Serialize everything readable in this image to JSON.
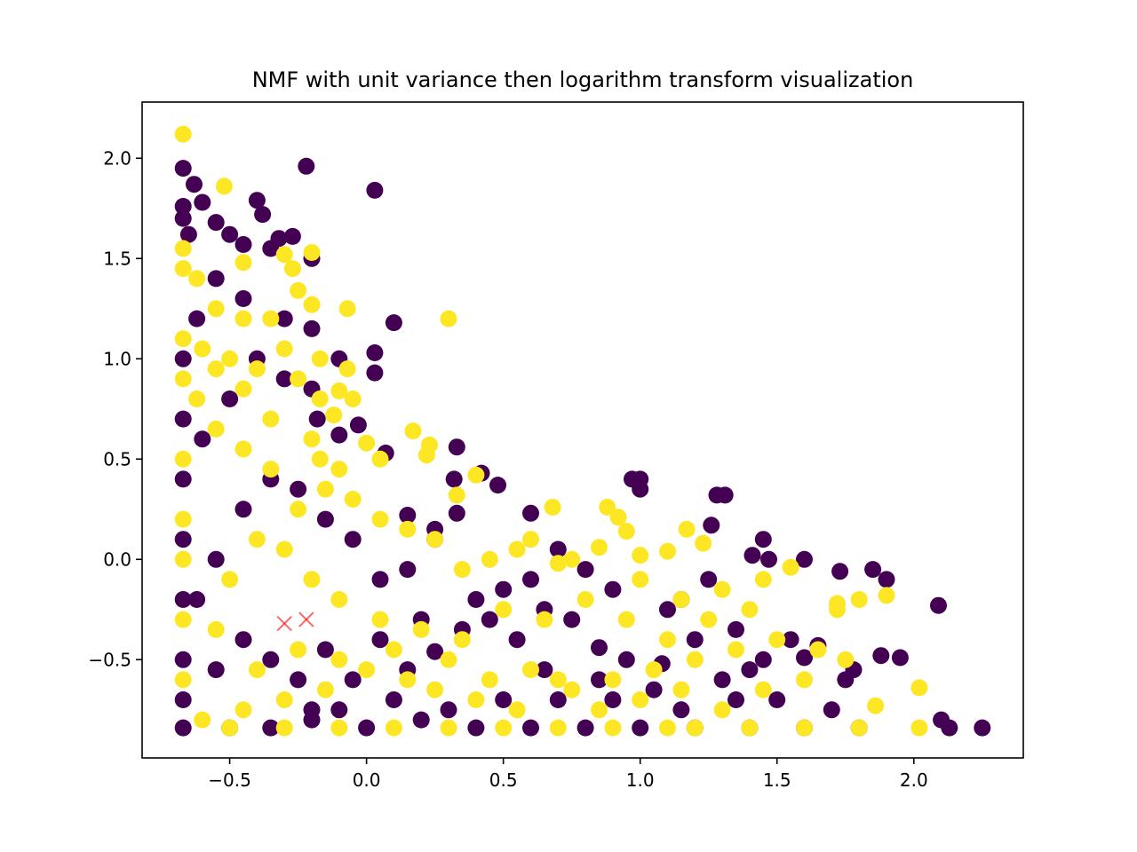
{
  "chart_data": {
    "type": "scatter",
    "title": "NMF with unit variance then logarithm transform visualization",
    "xlabel": "",
    "ylabel": "",
    "xlim": [
      -0.82,
      2.4
    ],
    "ylim": [
      -0.99,
      2.28
    ],
    "x_ticks": [
      -0.5,
      0.0,
      0.5,
      1.0,
      1.5,
      2.0
    ],
    "x_tick_labels": [
      "−0.5",
      "0.0",
      "0.5",
      "1.0",
      "1.5",
      "2.0"
    ],
    "y_ticks": [
      -0.5,
      0.0,
      0.5,
      1.0,
      1.5,
      2.0
    ],
    "y_tick_labels": [
      "−0.5",
      "0.0",
      "0.5",
      "1.0",
      "1.5",
      "2.0"
    ],
    "grid": false,
    "legend": "none",
    "colors": {
      "class_0": "#440154",
      "class_1": "#fde725",
      "centroid": "#ff0000"
    },
    "series": [
      {
        "values": [
          [
            -0.67,
            1.95
          ],
          [
            -0.67,
            1.76
          ],
          [
            -0.67,
            1.7
          ],
          [
            -0.65,
            1.62
          ],
          [
            -0.63,
            1.87
          ],
          [
            -0.6,
            1.78
          ],
          [
            -0.55,
            1.68
          ],
          [
            -0.5,
            1.62
          ],
          [
            -0.45,
            1.57
          ],
          [
            -0.4,
            1.79
          ],
          [
            -0.38,
            1.72
          ],
          [
            -0.35,
            1.55
          ],
          [
            -0.32,
            1.6
          ],
          [
            -0.27,
            1.61
          ],
          [
            -0.22,
            1.96
          ],
          [
            -0.2,
            1.5
          ],
          [
            0.03,
            1.84
          ],
          [
            -0.2,
            1.15
          ],
          [
            -0.1,
            1.0
          ],
          [
            0.03,
            1.03
          ],
          [
            0.03,
            0.93
          ],
          [
            0.1,
            1.18
          ],
          [
            -0.18,
            0.7
          ],
          [
            -0.1,
            0.62
          ],
          [
            -0.03,
            0.67
          ],
          [
            0.07,
            0.53
          ],
          [
            0.33,
            0.56
          ],
          [
            0.42,
            0.43
          ],
          [
            0.32,
            0.4
          ],
          [
            0.48,
            0.37
          ],
          [
            0.6,
            0.23
          ],
          [
            0.33,
            0.23
          ],
          [
            0.25,
            0.15
          ],
          [
            0.15,
            0.22
          ],
          [
            0.97,
            0.4
          ],
          [
            1.0,
            0.4
          ],
          [
            1.0,
            0.35
          ],
          [
            1.28,
            0.32
          ],
          [
            1.31,
            0.32
          ],
          [
            1.26,
            0.17
          ],
          [
            1.45,
            0.1
          ],
          [
            1.41,
            0.02
          ],
          [
            1.47,
            0.0
          ],
          [
            1.6,
            0.0
          ],
          [
            1.73,
            -0.06
          ],
          [
            1.85,
            -0.05
          ],
          [
            1.9,
            -0.1
          ],
          [
            2.09,
            -0.23
          ],
          [
            1.95,
            -0.49
          ],
          [
            1.88,
            -0.48
          ],
          [
            1.78,
            -0.55
          ],
          [
            1.65,
            -0.43
          ],
          [
            1.6,
            -0.49
          ],
          [
            1.45,
            -0.5
          ],
          [
            1.4,
            -0.55
          ],
          [
            1.3,
            -0.6
          ],
          [
            1.2,
            -0.4
          ],
          [
            1.08,
            -0.52
          ],
          [
            0.95,
            -0.5
          ],
          [
            0.85,
            -0.44
          ],
          [
            0.75,
            -0.3
          ],
          [
            0.65,
            -0.25
          ],
          [
            0.55,
            -0.4
          ],
          [
            0.45,
            -0.3
          ],
          [
            0.35,
            -0.35
          ],
          [
            0.25,
            -0.46
          ],
          [
            0.15,
            -0.55
          ],
          [
            0.05,
            -0.4
          ],
          [
            -0.05,
            -0.6
          ],
          [
            -0.15,
            -0.45
          ],
          [
            -0.25,
            -0.6
          ],
          [
            -0.35,
            -0.5
          ],
          [
            -0.45,
            -0.4
          ],
          [
            -0.55,
            -0.55
          ],
          [
            -0.62,
            -0.2
          ],
          [
            -0.55,
            0.0
          ],
          [
            -0.45,
            0.25
          ],
          [
            -0.35,
            0.4
          ],
          [
            -0.25,
            0.35
          ],
          [
            -0.15,
            0.2
          ],
          [
            -0.05,
            0.1
          ],
          [
            0.05,
            -0.1
          ],
          [
            0.15,
            -0.05
          ],
          [
            0.25,
            0.1
          ],
          [
            -0.6,
            0.6
          ],
          [
            -0.5,
            0.8
          ],
          [
            -0.4,
            1.0
          ],
          [
            -0.3,
            0.9
          ],
          [
            -0.2,
            0.85
          ],
          [
            -0.3,
            1.2
          ],
          [
            -0.45,
            1.3
          ],
          [
            -0.55,
            1.4
          ],
          [
            -0.62,
            1.2
          ],
          [
            -0.67,
            1.0
          ],
          [
            -0.67,
            0.7
          ],
          [
            -0.67,
            0.4
          ],
          [
            -0.67,
            0.1
          ],
          [
            -0.67,
            -0.2
          ],
          [
            -0.67,
            -0.5
          ],
          [
            -0.67,
            -0.7
          ],
          [
            -0.67,
            -0.84
          ],
          [
            -0.5,
            -0.84
          ],
          [
            -0.35,
            -0.84
          ],
          [
            -0.2,
            -0.8
          ],
          [
            0.0,
            -0.84
          ],
          [
            0.2,
            -0.8
          ],
          [
            0.4,
            -0.84
          ],
          [
            0.6,
            -0.84
          ],
          [
            0.8,
            -0.84
          ],
          [
            1.0,
            -0.84
          ],
          [
            1.2,
            -0.84
          ],
          [
            1.4,
            -0.84
          ],
          [
            1.6,
            -0.84
          ],
          [
            1.8,
            -0.84
          ],
          [
            2.1,
            -0.8
          ],
          [
            2.13,
            -0.84
          ],
          [
            2.25,
            -0.84
          ],
          [
            1.7,
            -0.75
          ],
          [
            1.5,
            -0.7
          ],
          [
            1.35,
            -0.7
          ],
          [
            1.15,
            -0.75
          ],
          [
            0.9,
            -0.7
          ],
          [
            0.7,
            -0.7
          ],
          [
            0.5,
            -0.7
          ],
          [
            0.3,
            -0.75
          ],
          [
            0.1,
            -0.7
          ],
          [
            -0.1,
            -0.75
          ],
          [
            -0.2,
            -0.75
          ],
          [
            0.7,
            0.05
          ],
          [
            0.8,
            -0.05
          ],
          [
            0.9,
            -0.15
          ],
          [
            1.1,
            -0.25
          ],
          [
            0.6,
            -0.1
          ],
          [
            0.4,
            -0.2
          ],
          [
            0.5,
            -0.15
          ],
          [
            0.2,
            -0.3
          ],
          [
            1.25,
            -0.1
          ],
          [
            1.15,
            -0.2
          ],
          [
            1.35,
            -0.35
          ],
          [
            1.55,
            -0.4
          ],
          [
            1.75,
            -0.6
          ],
          [
            0.85,
            -0.6
          ],
          [
            0.65,
            -0.55
          ],
          [
            1.05,
            -0.65
          ]
        ]
      },
      {
        "values": [
          [
            -0.67,
            2.12
          ],
          [
            -0.52,
            1.86
          ],
          [
            -0.67,
            1.55
          ],
          [
            -0.67,
            1.45
          ],
          [
            -0.62,
            1.4
          ],
          [
            -0.45,
            1.48
          ],
          [
            -0.3,
            1.52
          ],
          [
            -0.2,
            1.53
          ],
          [
            -0.27,
            1.45
          ],
          [
            -0.25,
            1.34
          ],
          [
            -0.2,
            1.27
          ],
          [
            -0.07,
            1.25
          ],
          [
            0.3,
            1.2
          ],
          [
            -0.17,
            1.0
          ],
          [
            -0.07,
            0.95
          ],
          [
            -0.1,
            0.84
          ],
          [
            -0.17,
            0.8
          ],
          [
            -0.12,
            0.72
          ],
          [
            -0.17,
            0.5
          ],
          [
            0.0,
            0.58
          ],
          [
            0.05,
            0.5
          ],
          [
            0.17,
            0.64
          ],
          [
            0.23,
            0.57
          ],
          [
            0.22,
            0.52
          ],
          [
            0.33,
            0.32
          ],
          [
            0.4,
            0.42
          ],
          [
            0.68,
            0.26
          ],
          [
            0.88,
            0.26
          ],
          [
            0.92,
            0.21
          ],
          [
            0.95,
            0.14
          ],
          [
            1.17,
            0.15
          ],
          [
            1.23,
            0.08
          ],
          [
            1.1,
            0.04
          ],
          [
            1.0,
            0.02
          ],
          [
            0.85,
            0.06
          ],
          [
            0.7,
            -0.02
          ],
          [
            0.55,
            0.05
          ],
          [
            0.45,
            0.0
          ],
          [
            0.35,
            -0.05
          ],
          [
            0.25,
            0.1
          ],
          [
            0.15,
            0.15
          ],
          [
            0.05,
            0.2
          ],
          [
            -0.05,
            0.3
          ],
          [
            -0.15,
            0.35
          ],
          [
            -0.25,
            0.25
          ],
          [
            -0.35,
            0.45
          ],
          [
            -0.45,
            0.55
          ],
          [
            -0.55,
            0.65
          ],
          [
            -0.62,
            0.8
          ],
          [
            -0.67,
            0.9
          ],
          [
            -0.67,
            1.1
          ],
          [
            -0.6,
            1.05
          ],
          [
            -0.5,
            1.0
          ],
          [
            -0.4,
            0.95
          ],
          [
            -0.3,
            1.05
          ],
          [
            -0.35,
            1.2
          ],
          [
            -0.45,
            1.2
          ],
          [
            -0.55,
            1.25
          ],
          [
            -0.67,
            0.5
          ],
          [
            -0.67,
            0.2
          ],
          [
            -0.67,
            0.0
          ],
          [
            -0.67,
            -0.3
          ],
          [
            -0.67,
            -0.6
          ],
          [
            -0.6,
            -0.8
          ],
          [
            -0.45,
            -0.75
          ],
          [
            -0.3,
            -0.7
          ],
          [
            -0.15,
            -0.65
          ],
          [
            0.0,
            -0.55
          ],
          [
            0.15,
            -0.6
          ],
          [
            0.3,
            -0.5
          ],
          [
            0.45,
            -0.6
          ],
          [
            0.6,
            -0.55
          ],
          [
            0.75,
            -0.65
          ],
          [
            0.9,
            -0.6
          ],
          [
            1.05,
            -0.55
          ],
          [
            1.2,
            -0.5
          ],
          [
            1.35,
            -0.45
          ],
          [
            1.5,
            -0.4
          ],
          [
            1.65,
            -0.45
          ],
          [
            1.72,
            -0.25
          ],
          [
            1.72,
            -0.22
          ],
          [
            1.8,
            -0.2
          ],
          [
            1.9,
            -0.18
          ],
          [
            2.02,
            -0.64
          ],
          [
            2.02,
            -0.84
          ],
          [
            1.86,
            -0.73
          ],
          [
            1.8,
            -0.84
          ],
          [
            1.6,
            -0.84
          ],
          [
            1.4,
            -0.84
          ],
          [
            1.2,
            -0.84
          ],
          [
            1.1,
            -0.84
          ],
          [
            0.9,
            -0.84
          ],
          [
            0.7,
            -0.84
          ],
          [
            0.5,
            -0.84
          ],
          [
            0.3,
            -0.84
          ],
          [
            0.1,
            -0.84
          ],
          [
            -0.1,
            -0.84
          ],
          [
            -0.3,
            -0.84
          ],
          [
            -0.5,
            -0.84
          ],
          [
            1.55,
            -0.04
          ],
          [
            1.45,
            -0.1
          ],
          [
            1.3,
            -0.15
          ],
          [
            1.15,
            -0.2
          ],
          [
            1.0,
            -0.1
          ],
          [
            0.8,
            -0.2
          ],
          [
            0.65,
            -0.3
          ],
          [
            0.5,
            -0.25
          ],
          [
            0.35,
            -0.4
          ],
          [
            0.2,
            -0.35
          ],
          [
            0.05,
            -0.3
          ],
          [
            -0.1,
            -0.2
          ],
          [
            -0.2,
            -0.1
          ],
          [
            -0.3,
            0.05
          ],
          [
            -0.4,
            0.1
          ],
          [
            -0.5,
            -0.1
          ],
          [
            -0.55,
            -0.35
          ],
          [
            -0.4,
            -0.55
          ],
          [
            -0.25,
            -0.45
          ],
          [
            -0.1,
            -0.5
          ],
          [
            0.1,
            -0.45
          ],
          [
            0.25,
            -0.65
          ],
          [
            0.4,
            -0.7
          ],
          [
            0.55,
            -0.75
          ],
          [
            0.7,
            -0.6
          ],
          [
            0.85,
            -0.75
          ],
          [
            1.0,
            -0.7
          ],
          [
            1.15,
            -0.65
          ],
          [
            1.3,
            -0.75
          ],
          [
            1.45,
            -0.65
          ],
          [
            1.6,
            -0.6
          ],
          [
            1.75,
            -0.5
          ],
          [
            0.6,
            0.1
          ],
          [
            0.75,
            0.0
          ],
          [
            0.95,
            -0.3
          ],
          [
            1.1,
            -0.4
          ],
          [
            1.25,
            -0.3
          ],
          [
            1.4,
            -0.25
          ],
          [
            -0.1,
            0.45
          ],
          [
            -0.2,
            0.6
          ],
          [
            -0.05,
            0.8
          ],
          [
            -0.25,
            0.9
          ],
          [
            -0.35,
            0.7
          ],
          [
            -0.45,
            0.85
          ],
          [
            -0.55,
            0.95
          ]
        ]
      }
    ],
    "centroids": [
      [
        -0.3,
        -0.32
      ],
      [
        -0.22,
        -0.3
      ]
    ]
  }
}
